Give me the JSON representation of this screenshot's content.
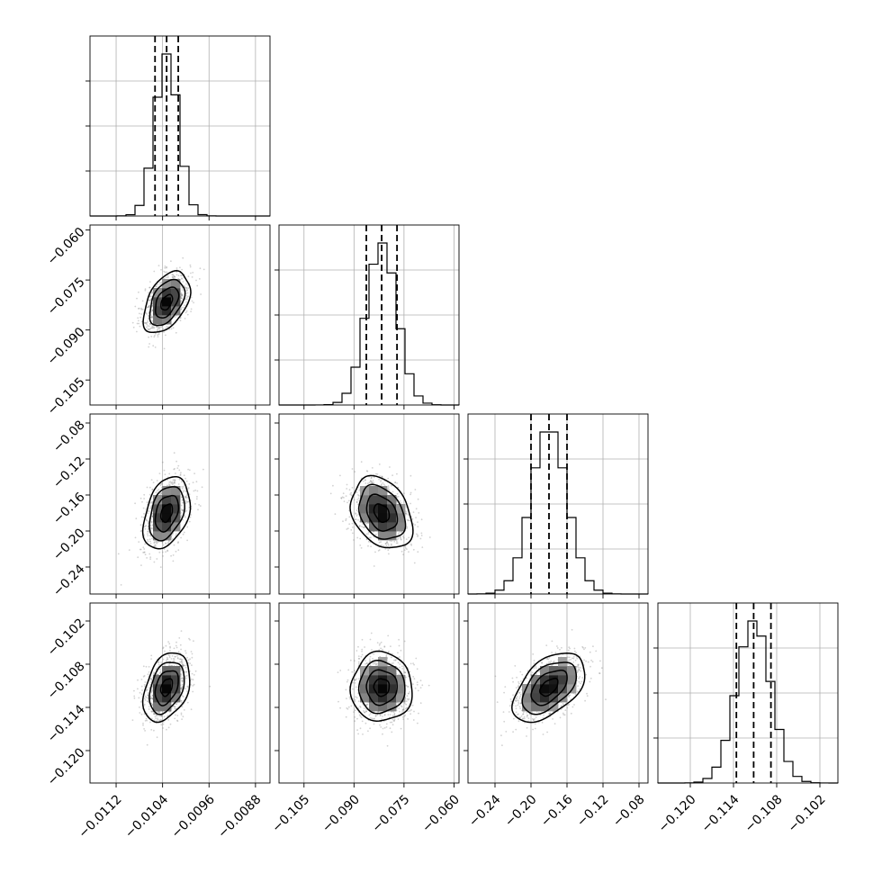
{
  "chart_data": {
    "type": "corner",
    "title": "",
    "n_params": 4,
    "grid": true,
    "scatter_color": "#7f7f7f",
    "line_color": "#000000",
    "parameters": [
      {
        "label": "",
        "range": [
          -0.01165,
          -0.00855
        ],
        "median": -0.01033,
        "quantiles": [
          -0.01053,
          -0.01033,
          -0.01013
        ],
        "sigma": 0.0002,
        "x_ticks": [
          -0.0112,
          -0.0104,
          -0.0096,
          -0.0088
        ],
        "x_tick_labels": [
          "−0.0112",
          "−0.0104",
          "−0.0096",
          "−0.0088"
        ],
        "y_ticks": [],
        "y_tick_labels": []
      },
      {
        "label": "",
        "range": [
          -0.1125,
          -0.0585
        ],
        "median": -0.0817,
        "quantiles": [
          -0.0863,
          -0.0817,
          -0.0771
        ],
        "sigma": 0.0046,
        "x_ticks": [
          -0.105,
          -0.09,
          -0.075,
          -0.06
        ],
        "x_tick_labels": [
          "−0.105",
          "−0.090",
          "−0.075",
          "−0.060"
        ],
        "y_ticks": [
          -0.06,
          -0.075,
          -0.09,
          -0.105
        ],
        "y_tick_labels": [
          "−0.060",
          "−0.075",
          "−0.090",
          "−0.105"
        ]
      },
      {
        "label": "",
        "range": [
          -0.27,
          -0.07
        ],
        "median": -0.18,
        "quantiles": [
          -0.2,
          -0.18,
          -0.16
        ],
        "sigma": 0.02,
        "x_ticks": [
          -0.24,
          -0.2,
          -0.16,
          -0.12,
          -0.08
        ],
        "x_tick_labels": [
          "−0.24",
          "−0.20",
          "−0.16",
          "−0.12",
          "−0.08"
        ],
        "y_ticks": [
          -0.08,
          -0.12,
          -0.16,
          -0.2,
          -0.24
        ],
        "y_tick_labels": [
          "−0.08",
          "−0.12",
          "−0.16",
          "−0.20",
          "−0.24"
        ]
      },
      {
        "label": "",
        "range": [
          -0.1245,
          -0.0995
        ],
        "median": -0.1112,
        "quantiles": [
          -0.1136,
          -0.1112,
          -0.1088
        ],
        "sigma": 0.0024,
        "x_ticks": [
          -0.12,
          -0.114,
          -0.108,
          -0.102
        ],
        "x_tick_labels": [
          "−0.120",
          "−0.114",
          "−0.108",
          "−0.102"
        ],
        "y_ticks": [
          -0.102,
          -0.108,
          -0.114,
          -0.12
        ],
        "y_tick_labels": [
          "−0.102",
          "−0.108",
          "−0.114",
          "−0.120"
        ]
      }
    ],
    "correlations": [
      {
        "row": 1,
        "col": 0,
        "rho": 0.45
      },
      {
        "row": 2,
        "col": 0,
        "rho": 0.35
      },
      {
        "row": 2,
        "col": 1,
        "rho": -0.3
      },
      {
        "row": 3,
        "col": 0,
        "rho": 0.35
      },
      {
        "row": 3,
        "col": 1,
        "rho": 0.0
      },
      {
        "row": 3,
        "col": 2,
        "rho": 0.5
      }
    ],
    "contour_levels_sigma": [
      0.5,
      1.0,
      1.5,
      2.0
    ]
  }
}
